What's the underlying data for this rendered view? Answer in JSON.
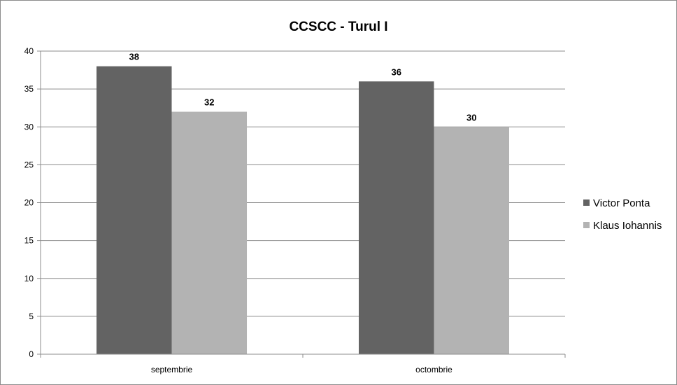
{
  "chart_data": {
    "type": "bar",
    "title": "CCSCC - Turul I",
    "categories": [
      "septembrie",
      "octombrie"
    ],
    "series": [
      {
        "name": "Victor Ponta",
        "values": [
          38,
          36
        ],
        "color": "#636363"
      },
      {
        "name": "Klaus Iohannis",
        "values": [
          32,
          30
        ],
        "color": "#b3b3b3"
      }
    ],
    "ylim": [
      0,
      40
    ],
    "yticks": [
      0,
      5,
      10,
      15,
      20,
      25,
      30,
      35,
      40
    ],
    "grid": true,
    "legend_position": "right",
    "data_labels": true
  }
}
